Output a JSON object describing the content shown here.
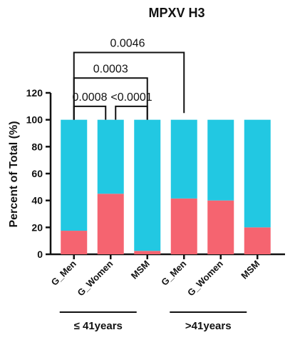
{
  "chart_data": {
    "type": "bar",
    "stacked": true,
    "title": "MPXV H3",
    "ylabel": "Percent of Total (%)",
    "ylim": [
      0,
      120
    ],
    "yticks": [
      0,
      20,
      40,
      60,
      80,
      100,
      120
    ],
    "categories": [
      "G_Men",
      "G_Women",
      "MSM",
      "G_Men",
      "G_Women",
      "MSM"
    ],
    "groups": [
      {
        "label": "≤ 41years",
        "members": [
          0,
          1,
          2
        ]
      },
      {
        "label": ">41years",
        "members": [
          3,
          4,
          5
        ]
      }
    ],
    "series": [
      {
        "color": "#f56470",
        "values": [
          17.5,
          45,
          2.5,
          41.5,
          40,
          20
        ]
      },
      {
        "color": "#22c8e2",
        "values": [
          82.5,
          55,
          97.5,
          58.5,
          60,
          80
        ]
      }
    ],
    "comparisons": [
      {
        "from": 0,
        "to": 1,
        "p": "0.0008"
      },
      {
        "from": 1,
        "to": 2,
        "p": "<0.0001"
      },
      {
        "from": 0,
        "to": 2,
        "p": "0.0003"
      },
      {
        "from": 0,
        "to": 3,
        "p": "0.0046"
      }
    ]
  }
}
